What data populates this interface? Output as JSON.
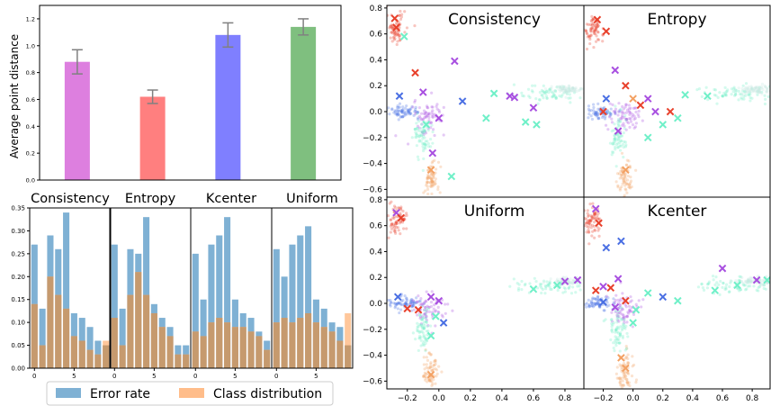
{
  "colors": {
    "error_rate": "#7fb1d4",
    "class_distribution": "#ffbd8a",
    "bars": [
      "#dd7fdf",
      "#ff7f7f",
      "#7f7fff",
      "#7fbf7f"
    ],
    "errorbar": "#808080"
  },
  "legend": {
    "error_rate": "Error rate",
    "class_distribution": "Class distribution"
  },
  "chart_data": [
    {
      "type": "bar",
      "ylabel": "Average point distance",
      "ylim": [
        0,
        1.3
      ],
      "yticks": [
        "0.0",
        "0.2",
        "0.4",
        "0.6",
        "0.8",
        "1.0",
        "1.2"
      ],
      "categories": [
        "Consistency",
        "Entropy",
        "Kcenter",
        "Uniform"
      ],
      "values": [
        0.88,
        0.62,
        1.08,
        1.14
      ],
      "errors": [
        0.09,
        0.05,
        0.09,
        0.06
      ],
      "grid": false
    },
    {
      "type": "bar",
      "panels": [
        "Consistency",
        "Entropy",
        "Kcenter",
        "Uniform"
      ],
      "ylim": [
        0,
        0.35
      ],
      "yticks": [
        "0.00",
        "0.05",
        "0.10",
        "0.15",
        "0.20",
        "0.25",
        "0.30",
        "0.35"
      ],
      "xticks": [
        "0",
        "5"
      ],
      "x": [
        0,
        1,
        2,
        3,
        4,
        5,
        6,
        7,
        8,
        9
      ],
      "series_names": [
        "Error rate",
        "Class distribution"
      ],
      "series": [
        {
          "name": "Error rate",
          "panel": "Consistency",
          "values": [
            0.27,
            0.13,
            0.29,
            0.26,
            0.34,
            0.12,
            0.11,
            0.09,
            0.06,
            0.05
          ]
        },
        {
          "name": "Class distribution",
          "panel": "Consistency",
          "values": [
            0.14,
            0.05,
            0.2,
            0.16,
            0.13,
            0.07,
            0.06,
            0.04,
            0.03,
            0.06
          ]
        },
        {
          "name": "Error rate",
          "panel": "Entropy",
          "values": [
            0.27,
            0.13,
            0.26,
            0.25,
            0.33,
            0.14,
            0.11,
            0.09,
            0.05,
            0.05
          ]
        },
        {
          "name": "Class distribution",
          "panel": "Entropy",
          "values": [
            0.11,
            0.05,
            0.16,
            0.21,
            0.16,
            0.12,
            0.09,
            0.07,
            0.03,
            0.03
          ]
        },
        {
          "name": "Error rate",
          "panel": "Kcenter",
          "values": [
            0.25,
            0.15,
            0.27,
            0.29,
            0.33,
            0.15,
            0.12,
            0.11,
            0.08,
            0.06
          ]
        },
        {
          "name": "Class distribution",
          "panel": "Kcenter",
          "values": [
            0.08,
            0.07,
            0.1,
            0.11,
            0.1,
            0.09,
            0.09,
            0.08,
            0.07,
            0.04
          ]
        },
        {
          "name": "Error rate",
          "panel": "Uniform",
          "values": [
            0.26,
            0.2,
            0.27,
            0.29,
            0.31,
            0.15,
            0.13,
            0.1,
            0.09,
            0.05
          ]
        },
        {
          "name": "Class distribution",
          "panel": "Uniform",
          "values": [
            0.1,
            0.11,
            0.1,
            0.11,
            0.12,
            0.1,
            0.09,
            0.08,
            0.06,
            0.12
          ]
        }
      ]
    },
    {
      "type": "scatter",
      "panels": [
        "Consistency",
        "Entropy",
        "Uniform",
        "Kcenter"
      ],
      "xlim": [
        -0.33,
        0.92
      ],
      "ylim": [
        -0.66,
        0.82
      ],
      "xticks": [
        "−0.2",
        "0.0",
        "0.2",
        "0.4",
        "0.6",
        "0.8"
      ],
      "yticks": [
        "−0.6",
        "−0.4",
        "−0.2",
        "0.0",
        "0.2",
        "0.4",
        "0.6",
        "0.8"
      ],
      "cloud_colors": [
        "#e8402b",
        "#4a6fe3",
        "#f3a163",
        "#a84fe0",
        "#6ff0c8",
        "#c7e8e0",
        "#ef6b50"
      ],
      "clusters": [
        {
          "center": [
            -0.27,
            0.64
          ],
          "spread": [
            0.03,
            0.06
          ],
          "color": "#e8402b"
        },
        {
          "center": [
            -0.05,
            -0.52
          ],
          "spread": [
            0.025,
            0.07
          ],
          "color": "#f3a163"
        },
        {
          "center": [
            -0.22,
            0.0
          ],
          "spread": [
            0.05,
            0.025
          ],
          "color": "#4a6fe3"
        },
        {
          "center": [
            -0.06,
            -0.04
          ],
          "spread": [
            0.05,
            0.06
          ],
          "color": "#a84fe0"
        },
        {
          "center": [
            0.7,
            0.14
          ],
          "spread": [
            0.12,
            0.03
          ],
          "color": "#6ff0c8"
        },
        {
          "center": [
            0.82,
            0.17
          ],
          "spread": [
            0.06,
            0.015
          ],
          "color": "#c7e8e0"
        },
        {
          "center": [
            -0.1,
            -0.2
          ],
          "spread": [
            0.03,
            0.08
          ],
          "color": "#6ff0c8"
        }
      ],
      "selected": [
        {
          "panel": "Consistency",
          "points": [
            [
              -0.28,
              0.72,
              "#e8402b"
            ],
            [
              -0.27,
              0.65,
              "#e8402b"
            ],
            [
              -0.22,
              0.58,
              "#6ff0c8"
            ],
            [
              -0.15,
              0.3,
              "#e8402b"
            ],
            [
              -0.25,
              0.12,
              "#4a6fe3"
            ],
            [
              -0.1,
              0.15,
              "#a84fe0"
            ],
            [
              0.1,
              0.39,
              "#a84fe0"
            ],
            [
              0.45,
              0.12,
              "#a84fe0"
            ],
            [
              0.48,
              0.11,
              "#a84fe0"
            ],
            [
              0.35,
              0.14,
              "#6ff0c8"
            ],
            [
              0.15,
              0.08,
              "#4a6fe3"
            ],
            [
              0.0,
              -0.05,
              "#a84fe0"
            ],
            [
              -0.04,
              -0.32,
              "#a84fe0"
            ],
            [
              -0.05,
              -0.45,
              "#f3a163"
            ],
            [
              0.08,
              -0.5,
              "#6ff0c8"
            ],
            [
              0.55,
              -0.08,
              "#6ff0c8"
            ],
            [
              0.6,
              0.03,
              "#a84fe0"
            ],
            [
              0.62,
              -0.1,
              "#6ff0c8"
            ],
            [
              0.3,
              -0.05,
              "#6ff0c8"
            ],
            [
              -0.08,
              -0.1,
              "#6ff0c8"
            ]
          ]
        },
        {
          "panel": "Entropy",
          "points": [
            [
              -0.24,
              0.71,
              "#e8402b"
            ],
            [
              -0.18,
              0.62,
              "#e8402b"
            ],
            [
              -0.12,
              0.32,
              "#a84fe0"
            ],
            [
              -0.05,
              0.2,
              "#e8402b"
            ],
            [
              0.0,
              0.1,
              "#f3a163"
            ],
            [
              0.1,
              0.1,
              "#a84fe0"
            ],
            [
              0.25,
              0.0,
              "#e8402b"
            ],
            [
              0.3,
              -0.05,
              "#6ff0c8"
            ],
            [
              0.35,
              0.13,
              "#6ff0c8"
            ],
            [
              0.2,
              -0.1,
              "#6ff0c8"
            ],
            [
              -0.18,
              0.1,
              "#4a6fe3"
            ],
            [
              -0.1,
              -0.15,
              "#a84fe0"
            ],
            [
              -0.05,
              -0.45,
              "#f3a163"
            ],
            [
              0.1,
              -0.2,
              "#6ff0c8"
            ],
            [
              0.5,
              0.12,
              "#6ff0c8"
            ],
            [
              0.05,
              0.05,
              "#e8402b"
            ],
            [
              -0.2,
              0.0,
              "#e8402b"
            ],
            [
              0.15,
              0.0,
              "#a84fe0"
            ]
          ]
        },
        {
          "panel": "Uniform",
          "points": [
            [
              -0.27,
              0.7,
              "#a84fe0"
            ],
            [
              -0.24,
              0.66,
              "#e8402b"
            ],
            [
              -0.26,
              0.05,
              "#4a6fe3"
            ],
            [
              -0.2,
              -0.04,
              "#e8402b"
            ],
            [
              -0.13,
              -0.05,
              "#e8402b"
            ],
            [
              -0.05,
              0.05,
              "#a84fe0"
            ],
            [
              0.0,
              0.02,
              "#a84fe0"
            ],
            [
              -0.02,
              -0.1,
              "#6ff0c8"
            ],
            [
              0.03,
              -0.15,
              "#4a6fe3"
            ],
            [
              -0.05,
              -0.25,
              "#6ff0c8"
            ],
            [
              0.6,
              0.11,
              "#6ff0c8"
            ],
            [
              0.75,
              0.14,
              "#6ff0c8"
            ],
            [
              0.8,
              0.17,
              "#a84fe0"
            ],
            [
              0.88,
              0.18,
              "#a84fe0"
            ],
            [
              -0.05,
              -0.55,
              "#f3a163"
            ]
          ]
        },
        {
          "panel": "Kcenter",
          "points": [
            [
              -0.25,
              0.73,
              "#a84fe0"
            ],
            [
              -0.23,
              0.62,
              "#e8402b"
            ],
            [
              -0.18,
              0.43,
              "#4a6fe3"
            ],
            [
              -0.08,
              0.48,
              "#4a6fe3"
            ],
            [
              -0.1,
              0.19,
              "#a84fe0"
            ],
            [
              -0.2,
              0.13,
              "#a84fe0"
            ],
            [
              -0.25,
              0.1,
              "#e8402b"
            ],
            [
              -0.15,
              0.12,
              "#e8402b"
            ],
            [
              -0.2,
              0.01,
              "#4a6fe3"
            ],
            [
              -0.12,
              -0.03,
              "#a84fe0"
            ],
            [
              -0.05,
              0.02,
              "#e8402b"
            ],
            [
              0.02,
              -0.05,
              "#6ff0c8"
            ],
            [
              0.1,
              0.08,
              "#6ff0c8"
            ],
            [
              0.2,
              0.05,
              "#4a6fe3"
            ],
            [
              0.3,
              0.02,
              "#6ff0c8"
            ],
            [
              0.6,
              0.27,
              "#a84fe0"
            ],
            [
              0.55,
              0.1,
              "#6ff0c8"
            ],
            [
              0.7,
              0.14,
              "#6ff0c8"
            ],
            [
              0.83,
              0.18,
              "#a84fe0"
            ],
            [
              0.9,
              0.18,
              "#6ff0c8"
            ],
            [
              -0.08,
              -0.42,
              "#f3a163"
            ],
            [
              -0.05,
              -0.5,
              "#f3a163"
            ],
            [
              0.0,
              -0.15,
              "#6ff0c8"
            ]
          ]
        }
      ]
    }
  ]
}
